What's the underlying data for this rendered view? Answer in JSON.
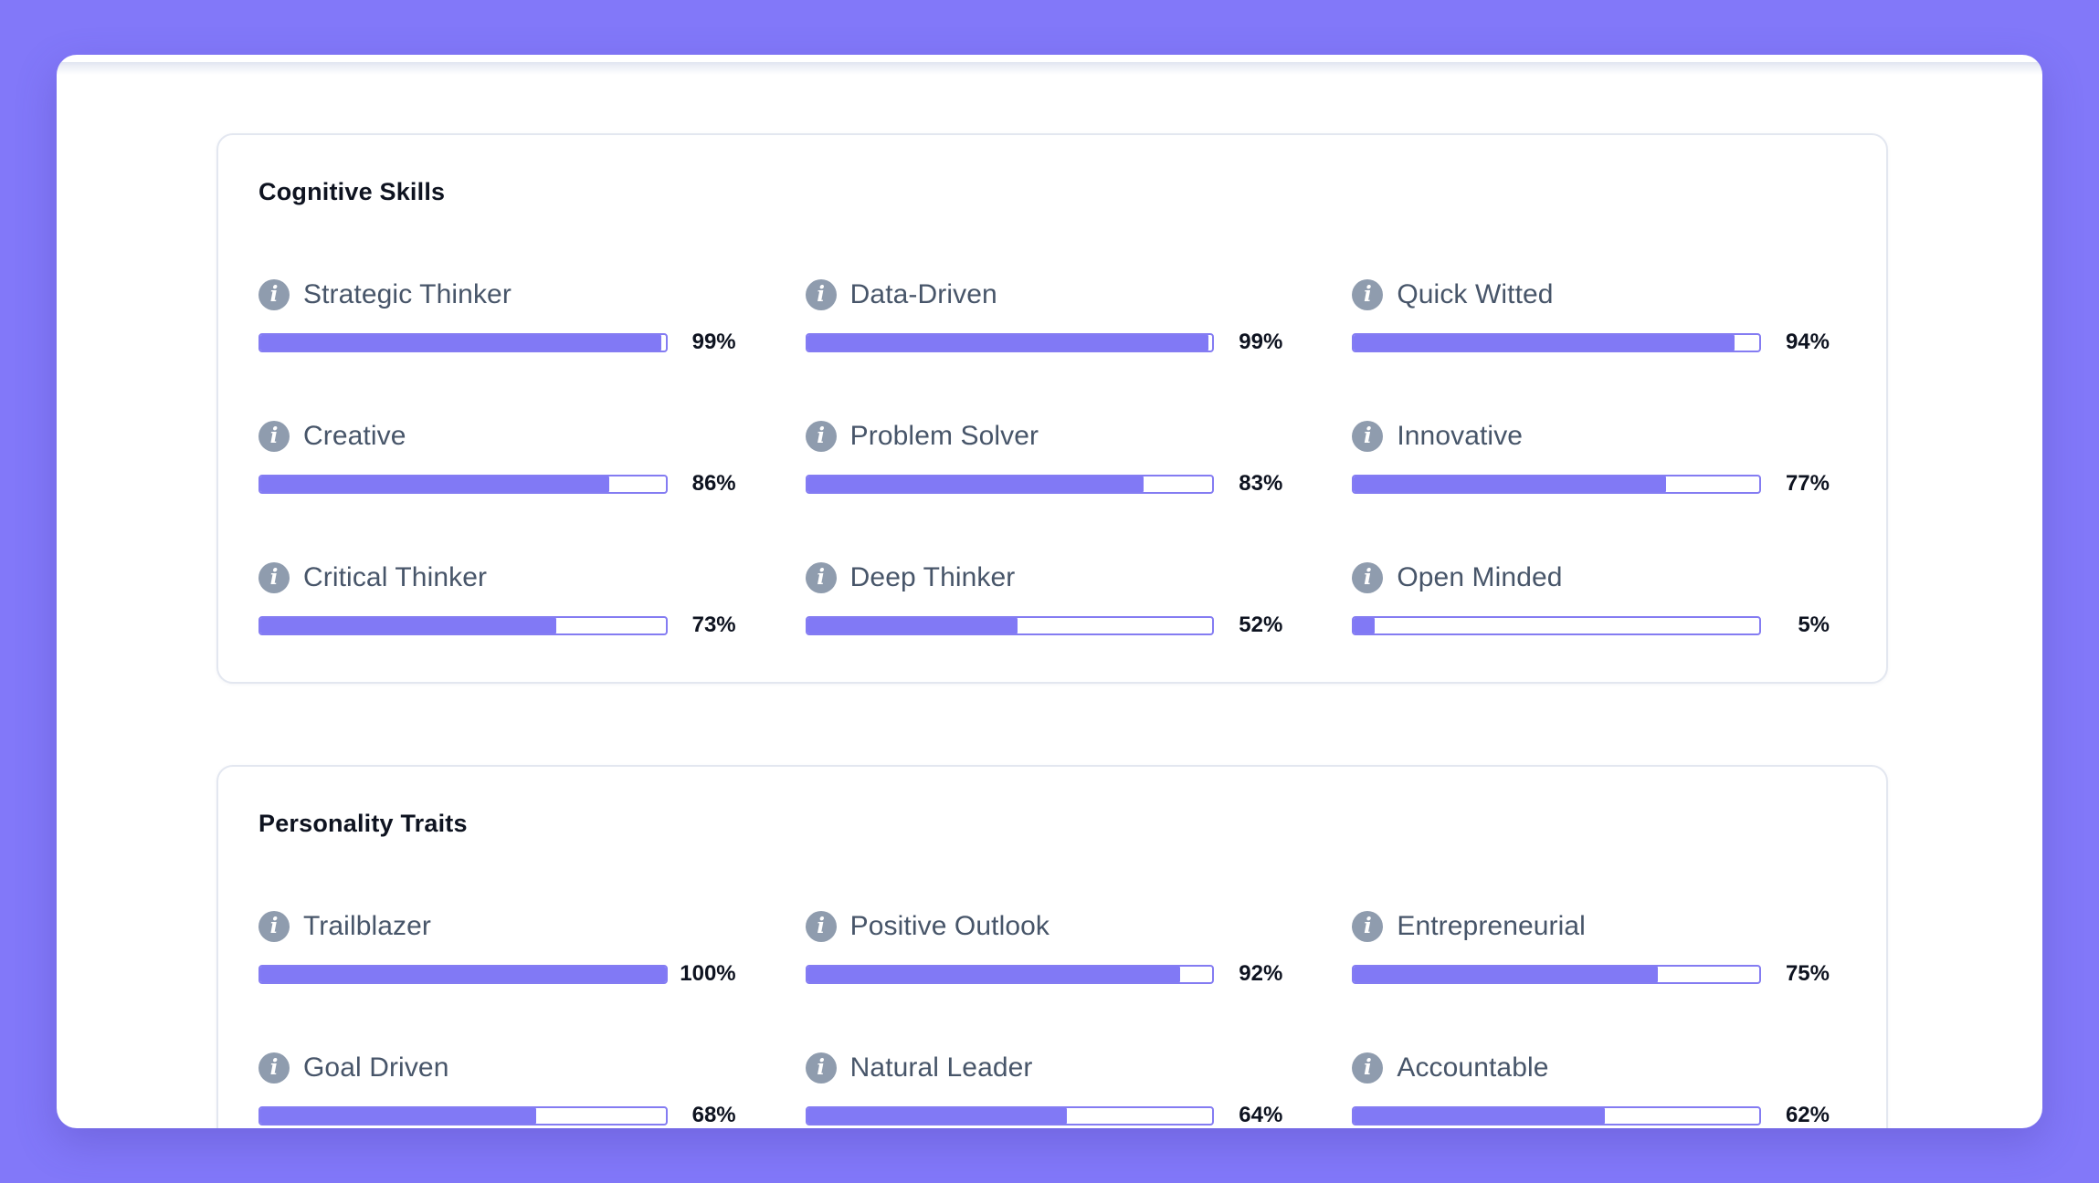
{
  "theme": {
    "background": "#8278F9",
    "bar_fill": "#8179F5",
    "track_border": "#847CF2",
    "panel_border": "#E3E7F0",
    "title_color": "#0E1320",
    "label_color": "#475569",
    "icon_bg": "#8F9CAE"
  },
  "icons": {
    "info": "i"
  },
  "sections": [
    {
      "title": "Cognitive Skills",
      "items": [
        {
          "label": "Strategic Thinker",
          "percent": 99,
          "display": "99%"
        },
        {
          "label": "Data-Driven",
          "percent": 99,
          "display": "99%"
        },
        {
          "label": "Quick Witted",
          "percent": 94,
          "display": "94%"
        },
        {
          "label": "Creative",
          "percent": 86,
          "display": "86%"
        },
        {
          "label": "Problem Solver",
          "percent": 83,
          "display": "83%"
        },
        {
          "label": "Innovative",
          "percent": 77,
          "display": "77%"
        },
        {
          "label": "Critical Thinker",
          "percent": 73,
          "display": "73%"
        },
        {
          "label": "Deep Thinker",
          "percent": 52,
          "display": "52%"
        },
        {
          "label": "Open Minded",
          "percent": 5,
          "display": "5%"
        }
      ]
    },
    {
      "title": "Personality Traits",
      "items": [
        {
          "label": "Trailblazer",
          "percent": 100,
          "display": "100%"
        },
        {
          "label": "Positive Outlook",
          "percent": 92,
          "display": "92%"
        },
        {
          "label": "Entrepreneurial",
          "percent": 75,
          "display": "75%"
        },
        {
          "label": "Goal Driven",
          "percent": 68,
          "display": "68%"
        },
        {
          "label": "Natural Leader",
          "percent": 64,
          "display": "64%"
        },
        {
          "label": "Accountable",
          "percent": 62,
          "display": "62%"
        }
      ]
    }
  ]
}
